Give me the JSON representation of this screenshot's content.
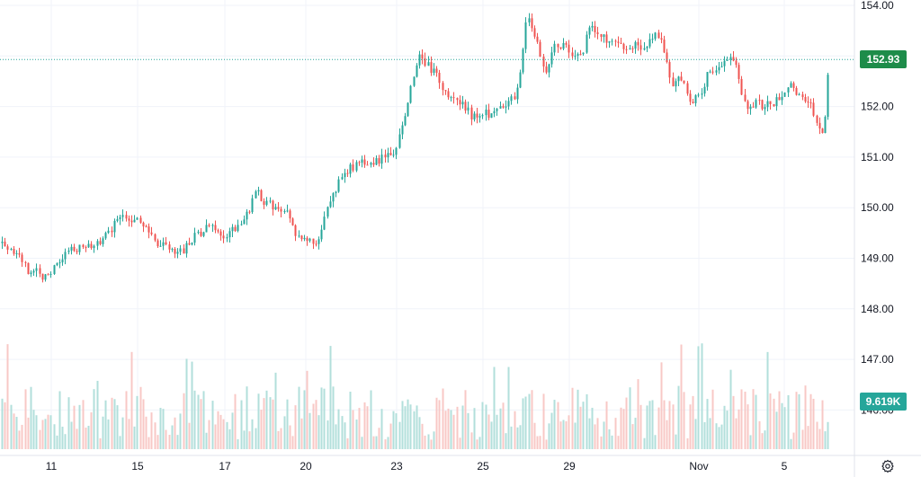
{
  "chart_data": {
    "type": "candlestick",
    "y_ticks": [
      "154.00",
      "153.00",
      "152.00",
      "151.00",
      "150.00",
      "149.00",
      "148.00",
      "147.00",
      "146.00"
    ],
    "x_ticks": [
      "11",
      "15",
      "17",
      "20",
      "23",
      "25",
      "29",
      "Nov",
      "5"
    ],
    "ylim": [
      145.6,
      154.1
    ],
    "last_price": 152.93,
    "last_price_label": "152.93",
    "last_volume_label": "9.619K",
    "series": [
      {
        "name": "price",
        "up_color": "#26a69a",
        "down_color": "#ef5350"
      },
      {
        "name": "volume",
        "up_color": "#b2dfdb",
        "down_color": "#f8c8c6"
      }
    ],
    "price_path": [
      [
        0,
        149.3
      ],
      [
        10,
        149.1
      ],
      [
        20,
        149.2
      ],
      [
        32,
        148.6
      ],
      [
        40,
        148.8
      ],
      [
        50,
        148.6
      ],
      [
        60,
        148.8
      ],
      [
        70,
        149.0
      ],
      [
        80,
        149.2
      ],
      [
        95,
        149.2
      ],
      [
        110,
        149.3
      ],
      [
        125,
        149.6
      ],
      [
        135,
        149.9
      ],
      [
        145,
        149.8
      ],
      [
        155,
        149.8
      ],
      [
        165,
        149.5
      ],
      [
        175,
        149.2
      ],
      [
        185,
        149.3
      ],
      [
        195,
        149.0
      ],
      [
        205,
        149.2
      ],
      [
        215,
        149.4
      ],
      [
        225,
        149.5
      ],
      [
        235,
        149.7
      ],
      [
        245,
        149.4
      ],
      [
        255,
        149.5
      ],
      [
        265,
        149.7
      ],
      [
        275,
        149.9
      ],
      [
        285,
        150.3
      ],
      [
        295,
        150.1
      ],
      [
        305,
        150.0
      ],
      [
        318,
        149.9
      ],
      [
        328,
        149.5
      ],
      [
        340,
        149.4
      ],
      [
        350,
        149.2
      ],
      [
        360,
        149.8
      ],
      [
        370,
        150.2
      ],
      [
        380,
        150.7
      ],
      [
        392,
        150.8
      ],
      [
        402,
        150.9
      ],
      [
        415,
        150.9
      ],
      [
        428,
        151.0
      ],
      [
        440,
        151.1
      ],
      [
        450,
        151.9
      ],
      [
        460,
        152.6
      ],
      [
        466,
        153.0
      ],
      [
        475,
        152.8
      ],
      [
        485,
        152.6
      ],
      [
        495,
        152.3
      ],
      [
        505,
        152.1
      ],
      [
        515,
        152.0
      ],
      [
        525,
        151.8
      ],
      [
        535,
        151.9
      ],
      [
        545,
        151.8
      ],
      [
        555,
        152.0
      ],
      [
        565,
        152.1
      ],
      [
        575,
        152.3
      ],
      [
        585,
        153.7
      ],
      [
        592,
        153.6
      ],
      [
        600,
        153.0
      ],
      [
        608,
        152.7
      ],
      [
        616,
        153.2
      ],
      [
        626,
        153.2
      ],
      [
        636,
        153.0
      ],
      [
        646,
        153.0
      ],
      [
        656,
        153.6
      ],
      [
        666,
        153.4
      ],
      [
        676,
        153.3
      ],
      [
        686,
        153.2
      ],
      [
        696,
        153.1
      ],
      [
        706,
        153.2
      ],
      [
        716,
        153.1
      ],
      [
        726,
        153.4
      ],
      [
        736,
        153.3
      ],
      [
        746,
        152.4
      ],
      [
        756,
        152.6
      ],
      [
        766,
        152.1
      ],
      [
        776,
        152.2
      ],
      [
        786,
        152.6
      ],
      [
        796,
        152.7
      ],
      [
        806,
        152.9
      ],
      [
        816,
        153.0
      ],
      [
        822,
        152.5
      ],
      [
        830,
        151.9
      ],
      [
        840,
        152.1
      ],
      [
        850,
        152.0
      ],
      [
        860,
        152.1
      ],
      [
        870,
        152.2
      ],
      [
        880,
        152.4
      ],
      [
        890,
        152.2
      ],
      [
        900,
        152.1
      ],
      [
        908,
        151.7
      ],
      [
        916,
        151.5
      ],
      [
        922,
        152.93
      ]
    ]
  }
}
